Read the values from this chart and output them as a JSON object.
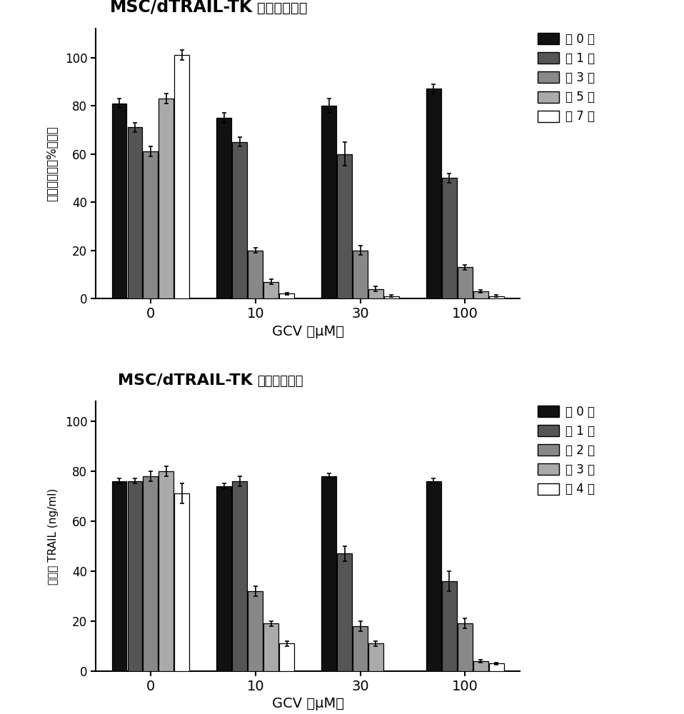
{
  "top_chart": {
    "title_bold": "MSC/dTRAIL-TK",
    "title_normal": "的细胞存活率",
    "ylabel": "细胞存活率（%对照）",
    "xlabel": "GCV （μM）",
    "ylim": [
      0,
      112
    ],
    "yticks": [
      0,
      20,
      40,
      60,
      80,
      100
    ],
    "gcv_labels": [
      "0",
      "10",
      "30",
      "100"
    ],
    "legend_labels": [
      "第 0 天",
      "第 1 天",
      "第 3 天",
      "第 5 天",
      "第 7 天"
    ],
    "colors": [
      "#111111",
      "#555555",
      "#888888",
      "#aaaaaa",
      "#ffffff"
    ],
    "edgecolors": [
      "#000000",
      "#000000",
      "#000000",
      "#000000",
      "#000000"
    ],
    "data": {
      "day0": [
        81,
        75,
        80,
        87
      ],
      "day1": [
        71,
        65,
        60,
        50
      ],
      "day3": [
        61,
        20,
        20,
        13
      ],
      "day5": [
        83,
        7,
        4,
        3
      ],
      "day7": [
        101,
        2,
        1,
        1
      ]
    },
    "errors": {
      "day0": [
        2,
        2,
        3,
        2
      ],
      "day1": [
        2,
        2,
        5,
        2
      ],
      "day3": [
        2,
        1,
        2,
        1
      ],
      "day5": [
        2,
        1,
        1,
        0.5
      ],
      "day7": [
        2,
        0.5,
        0.5,
        0.5
      ]
    }
  },
  "bottom_chart": {
    "title_bold": "MSC/dTRAIL-TK",
    "title_normal": "的细胞存活率",
    "ylabel": "TRAIL (ng/ml)",
    "ylabel_chinese": "分泌的",
    "xlabel": "GCV （μM）",
    "ylim": [
      0,
      108
    ],
    "yticks": [
      0,
      20,
      40,
      60,
      80,
      100
    ],
    "gcv_labels": [
      "0",
      "10",
      "30",
      "100"
    ],
    "legend_labels": [
      "第 0 天",
      "第 1 天",
      "第 2 天",
      "第 3 天",
      "第 4 天"
    ],
    "colors": [
      "#111111",
      "#555555",
      "#888888",
      "#aaaaaa",
      "#ffffff"
    ],
    "edgecolors": [
      "#000000",
      "#000000",
      "#000000",
      "#000000",
      "#000000"
    ],
    "data": {
      "day0": [
        76,
        74,
        78,
        76
      ],
      "day1": [
        76,
        76,
        47,
        36
      ],
      "day2": [
        78,
        32,
        18,
        19
      ],
      "day3": [
        80,
        19,
        11,
        4
      ],
      "day4": [
        71,
        11,
        0,
        3
      ]
    },
    "errors": {
      "day0": [
        1,
        1,
        1,
        1
      ],
      "day1": [
        1,
        2,
        3,
        4
      ],
      "day2": [
        2,
        2,
        2,
        2
      ],
      "day3": [
        2,
        1,
        1,
        0.5
      ],
      "day4": [
        4,
        1,
        0,
        0.5
      ]
    }
  },
  "figure_facecolor": "#ffffff"
}
